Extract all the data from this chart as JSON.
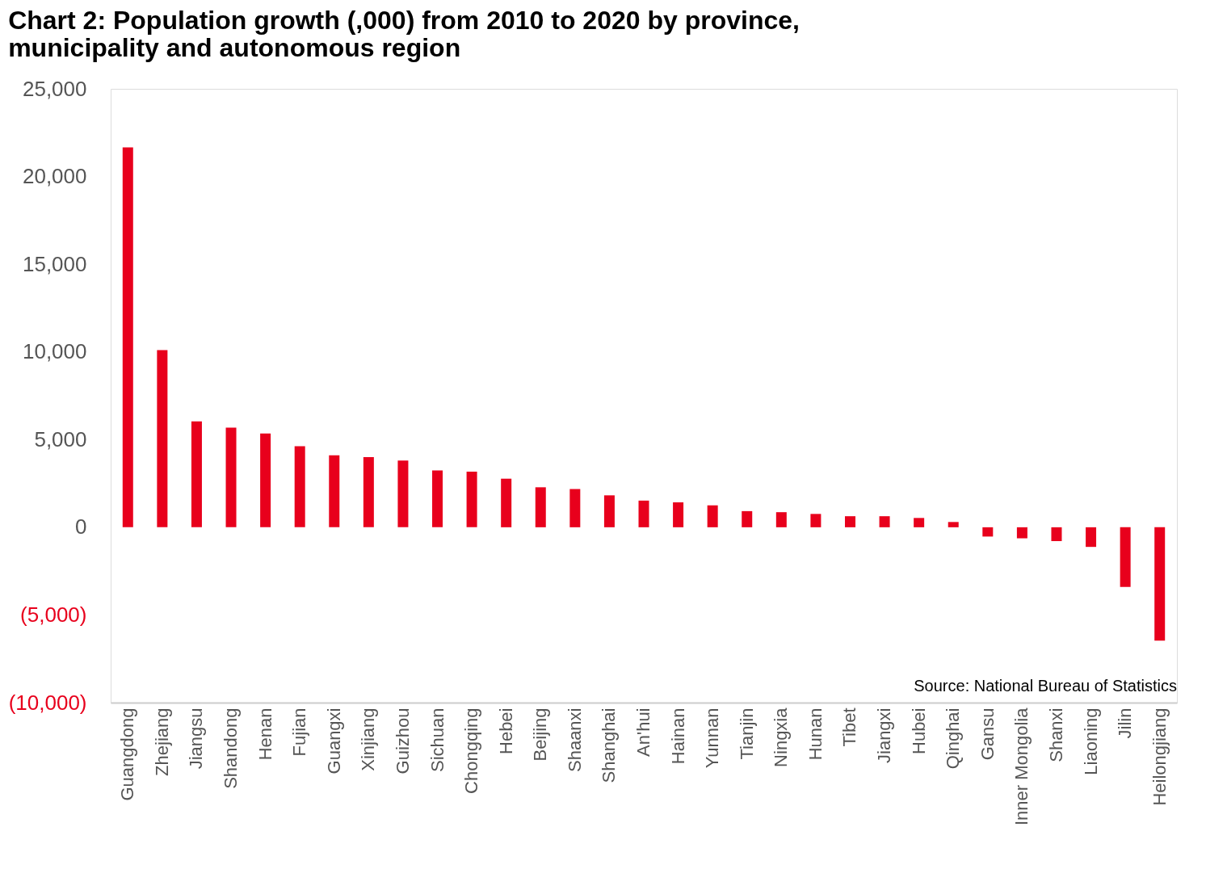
{
  "chart_data": {
    "type": "bar",
    "title": [
      "Chart 2: Population growth (,000) from 2010 to 2020 by province,",
      "municipality and autonomous region"
    ],
    "categories": [
      "Guangdong",
      "Zhejiang",
      "Jiangsu",
      "Shandong",
      "Henan",
      "Fujian",
      "Guangxi",
      "Xinjiang",
      "Guizhou",
      "Sichuan",
      "Chongqing",
      "Hebei",
      "Beijing",
      "Shaanxi",
      "Shanghai",
      "An'hui",
      "Hainan",
      "Yunnan",
      "Tianjin",
      "Ningxia",
      "Hunan",
      "Tibet",
      "Jiangxi",
      "Hubei",
      "Qinghai",
      "Gansu",
      "Inner Mongolia",
      "Shanxi",
      "Liaoning",
      "Jilin",
      "Heilongjiang"
    ],
    "values": [
      21660,
      10100,
      6040,
      5680,
      5350,
      4620,
      4100,
      4000,
      3800,
      3240,
      3170,
      2770,
      2280,
      2180,
      1820,
      1520,
      1420,
      1250,
      920,
      860,
      760,
      630,
      630,
      530,
      300,
      -530,
      -630,
      -790,
      -1120,
      -3400,
      -6470
    ],
    "color": "#e8001c",
    "ylim": [
      -10000,
      25000
    ],
    "yticks": [
      {
        "value": -10000,
        "label": "(10,000)"
      },
      {
        "value": -5000,
        "label": "(5,000)"
      },
      {
        "value": 0,
        "label": "0"
      },
      {
        "value": 5000,
        "label": "5,000"
      },
      {
        "value": 10000,
        "label": "10,000"
      },
      {
        "value": 15000,
        "label": "15,000"
      },
      {
        "value": 20000,
        "label": "20,000"
      },
      {
        "value": 25000,
        "label": "25,000"
      }
    ],
    "grid": false,
    "annotations": [
      "Source: National Bureau of Statistics"
    ]
  }
}
